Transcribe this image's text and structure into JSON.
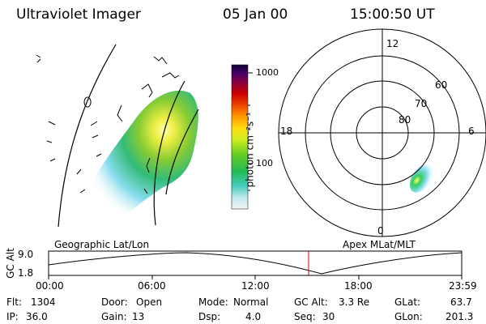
{
  "header": {
    "title": "Ultraviolet Imager",
    "date": "05 Jan 00",
    "time": "15:00:50 UT"
  },
  "colorbar": {
    "label": "photon cm⁻²s⁻¹",
    "ticks": [
      "1000",
      "100"
    ]
  },
  "polar": {
    "mlt_labels": {
      "top": "12",
      "right": "6",
      "left": "18",
      "bottom": "0"
    },
    "lat_labels": [
      "60",
      "70",
      "80"
    ]
  },
  "panels": {
    "left_caption": "Geographic Lat/Lon",
    "right_caption": "Apex  MLat/MLT"
  },
  "altitude_plot": {
    "ylabel": "GC Alt",
    "ymax": "9.0",
    "ymin": "1.8",
    "x_ticks": [
      "00:00",
      "06:00",
      "12:00",
      "18:00",
      "23:59"
    ],
    "marker_time": "15:00:50"
  },
  "info": {
    "flt_label": "Flt:",
    "flt_value": "1304",
    "ip_label": "IP:",
    "ip_value": "36.0",
    "door_label": "Door:",
    "door_value": "Open",
    "gain_label": "Gain:",
    "gain_value": "13",
    "mode_label": "Mode:",
    "mode_value": "Normal",
    "dsp_label": "Dsp:",
    "dsp_value": "4.0",
    "gcalt_label": "GC Alt:",
    "gcalt_value": "3.3 Re",
    "seq_label": "Seq:",
    "seq_value": "30",
    "glat_label": "GLat:",
    "glat_value": "63.7",
    "glon_label": "GLon:",
    "glon_value": "201.3"
  },
  "colors": {
    "marker": "#cc0000",
    "aurora_bright": "#ffff66",
    "aurora_mid": "#33cc66",
    "aurora_low": "#99ddee"
  }
}
